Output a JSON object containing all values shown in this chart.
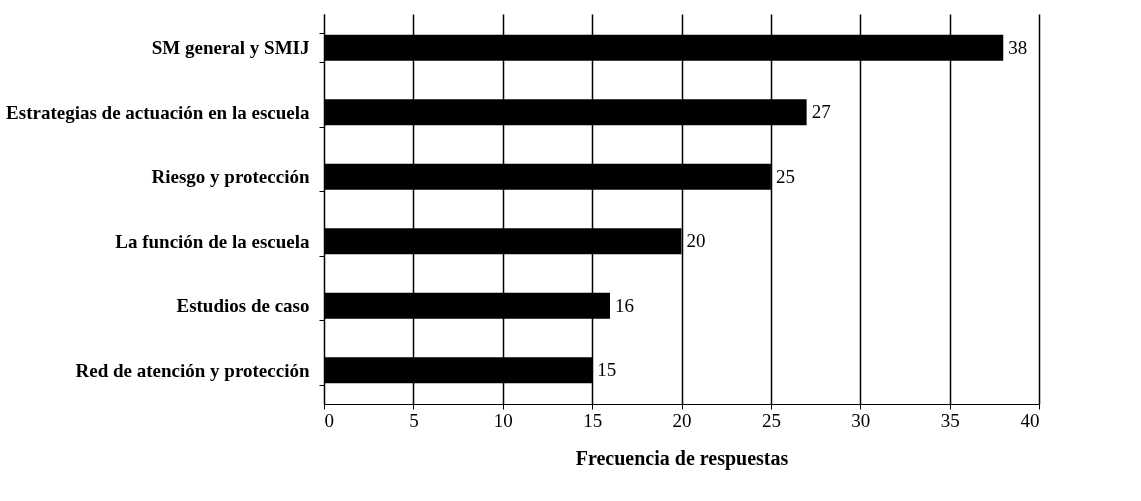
{
  "chart_data": {
    "type": "bar",
    "orientation": "horizontal",
    "categories": [
      "SM general y SMIJ",
      "Estrategias de actuación en la escuela",
      "Riesgo y protección",
      "La función de la escuela",
      "Estudios de caso",
      "Red de atención y protección"
    ],
    "values": [
      38,
      27,
      25,
      20,
      16,
      15
    ],
    "color": "#000000",
    "xlabel": "Frecuencia de respuestas",
    "xlim": [
      0,
      40
    ],
    "xticks": [
      0,
      5,
      10,
      15,
      20,
      25,
      30,
      35,
      40
    ],
    "grid": "x",
    "data_labels": true
  }
}
